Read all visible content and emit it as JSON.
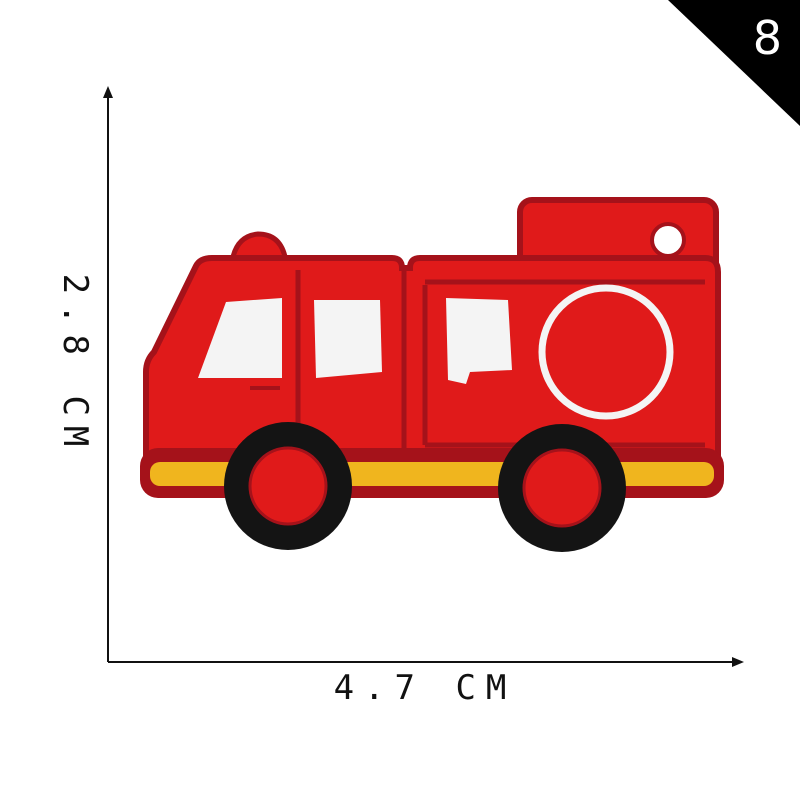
{
  "badge": {
    "number": "8"
  },
  "dimensions": {
    "width_label": "4.7 CM",
    "height_label": "2.8 CM"
  },
  "patch": {
    "subject": "fire-truck",
    "colors": {
      "body": "#e01a1a",
      "trim": "#a5121a",
      "stripe": "#f0b51e",
      "tire": "#141414",
      "window": "#f4f4f4"
    }
  }
}
